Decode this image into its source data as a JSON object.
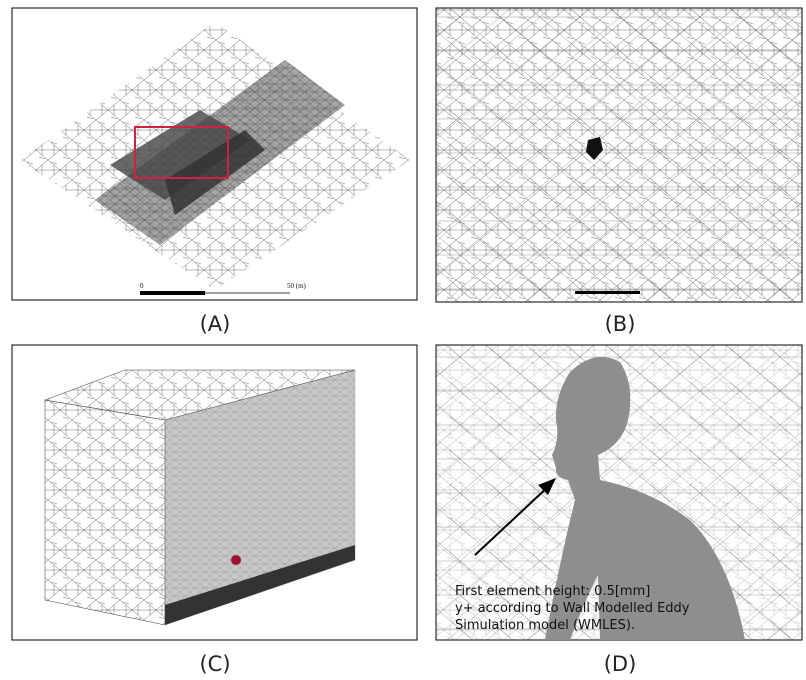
{
  "panels": [
    {
      "label": "(A)",
      "scale_start": "0",
      "scale_end": "50 (m)"
    },
    {
      "label": "(B)"
    },
    {
      "label": "(C)"
    },
    {
      "label": "(D)",
      "annotation": [
        "First element height: 0.5[mm]",
        "y+ according to Wall Modelled Eddy",
        "Simulation model (WMLES)."
      ]
    }
  ]
}
